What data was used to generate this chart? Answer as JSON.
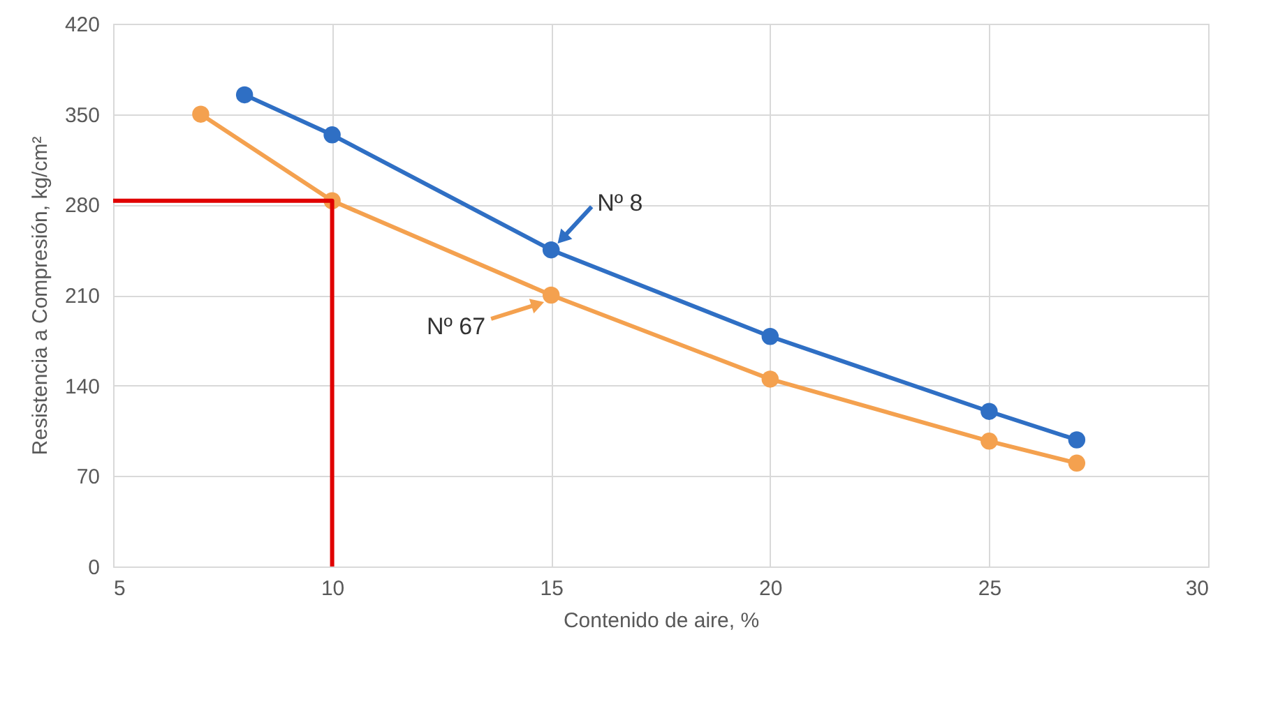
{
  "chart_data": {
    "type": "line",
    "xlabel": "Contenido de aire, %",
    "ylabel": "Resistencia a Compresión, kg/cm²",
    "xlim": [
      5,
      30
    ],
    "xticks": [
      5,
      10,
      15,
      20,
      25,
      30
    ],
    "ylim": [
      0,
      420
    ],
    "yticks": [
      0,
      70,
      140,
      210,
      280,
      350,
      420
    ],
    "grid": true,
    "marker": "circle",
    "line_style": "solid",
    "series": [
      {
        "color": "#2f6fc4",
        "x": [
          8,
          10,
          15,
          20,
          25,
          27
        ],
        "values": [
          365,
          334,
          245,
          178,
          120,
          98
        ]
      },
      {
        "color": "#f4a14f",
        "x": [
          7,
          10,
          15,
          20,
          25,
          27
        ],
        "values": [
          350,
          283,
          210,
          145,
          97,
          80
        ]
      },
      {
        "color": "#e00000",
        "marker": "none",
        "x": [
          5,
          10,
          10
        ],
        "values": [
          283,
          283,
          0
        ]
      }
    ],
    "annotations": [
      {
        "text": "Nº 8",
        "x": 15,
        "y": 245
      },
      {
        "text": "Nº 67",
        "x": 15,
        "y": 210
      }
    ]
  }
}
